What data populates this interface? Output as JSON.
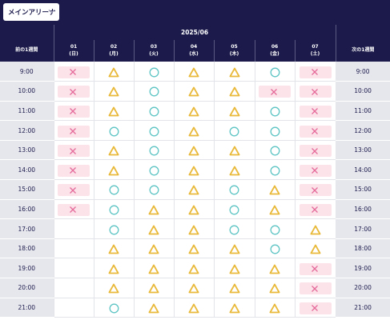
{
  "venue_select": {
    "label": "メインアリーナ",
    "icon": "chevron-down-icon"
  },
  "header": {
    "month": "2025/06",
    "prev_week": "前の1週間",
    "next_week": "次の1週間",
    "days": [
      {
        "num": "01",
        "dow": "(日)"
      },
      {
        "num": "02",
        "dow": "(月)"
      },
      {
        "num": "03",
        "dow": "(火)"
      },
      {
        "num": "04",
        "dow": "(水)"
      },
      {
        "num": "05",
        "dow": "(木)"
      },
      {
        "num": "06",
        "dow": "(金)"
      },
      {
        "num": "07",
        "dow": "(土)"
      }
    ]
  },
  "legend_colors": {
    "circle": "#5ec4c4",
    "triangle": "#e8b93a",
    "cross": "#e56b9a",
    "cross_bg": "#fce3ea",
    "header_bg": "#1b1a4b"
  },
  "rows": [
    {
      "time": "9:00",
      "slots": [
        "cross",
        "triangle",
        "circle",
        "triangle",
        "triangle",
        "circle",
        "cross"
      ]
    },
    {
      "time": "10:00",
      "slots": [
        "cross",
        "triangle",
        "circle",
        "triangle",
        "triangle",
        "cross",
        "cross"
      ]
    },
    {
      "time": "11:00",
      "slots": [
        "cross",
        "triangle",
        "circle",
        "triangle",
        "triangle",
        "circle",
        "cross"
      ]
    },
    {
      "time": "12:00",
      "slots": [
        "cross",
        "circle",
        "circle",
        "triangle",
        "circle",
        "circle",
        "cross"
      ]
    },
    {
      "time": "13:00",
      "slots": [
        "cross",
        "triangle",
        "circle",
        "triangle",
        "triangle",
        "circle",
        "cross"
      ]
    },
    {
      "time": "14:00",
      "slots": [
        "cross",
        "triangle",
        "circle",
        "triangle",
        "triangle",
        "circle",
        "cross"
      ]
    },
    {
      "time": "15:00",
      "slots": [
        "cross",
        "circle",
        "circle",
        "triangle",
        "circle",
        "triangle",
        "cross"
      ]
    },
    {
      "time": "16:00",
      "slots": [
        "cross",
        "circle",
        "triangle",
        "triangle",
        "circle",
        "triangle",
        "cross"
      ]
    },
    {
      "time": "17:00",
      "slots": [
        "",
        "circle",
        "triangle",
        "triangle",
        "circle",
        "circle",
        "triangle"
      ]
    },
    {
      "time": "18:00",
      "slots": [
        "",
        "triangle",
        "triangle",
        "triangle",
        "triangle",
        "circle",
        "triangle"
      ]
    },
    {
      "time": "19:00",
      "slots": [
        "",
        "triangle",
        "triangle",
        "triangle",
        "triangle",
        "triangle",
        "cross"
      ]
    },
    {
      "time": "20:00",
      "slots": [
        "",
        "triangle",
        "triangle",
        "triangle",
        "triangle",
        "triangle",
        "cross"
      ]
    },
    {
      "time": "21:00",
      "slots": [
        "",
        "circle",
        "triangle",
        "triangle",
        "triangle",
        "triangle",
        "cross"
      ]
    }
  ]
}
